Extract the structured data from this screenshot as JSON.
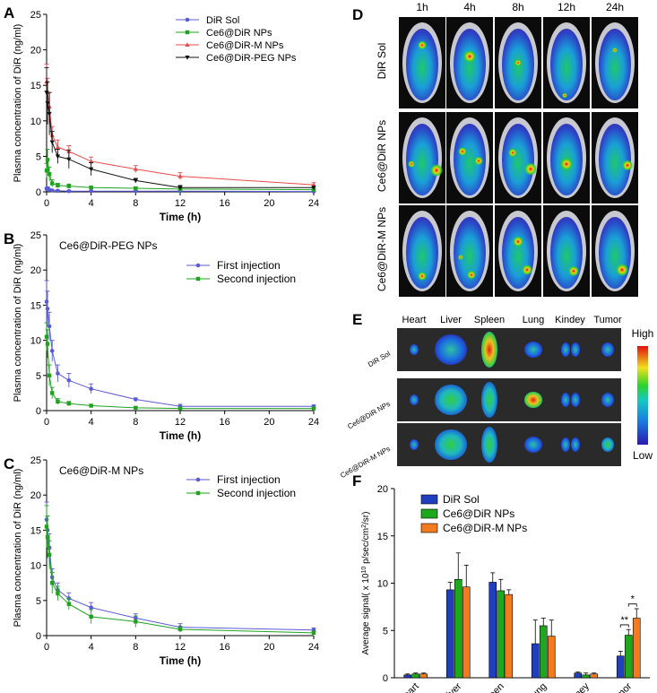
{
  "panels": {
    "A": "A",
    "B": "B",
    "C": "C",
    "D": "D",
    "E": "E",
    "F": "F"
  },
  "colors": {
    "dir": "#5b5bd6",
    "ce6dir": "#1fa31f",
    "m": "#e84b4b",
    "peg": "#111111",
    "first": "#5b5bd6",
    "second": "#1fa31f",
    "bar1": "#1f3fbf",
    "bar2": "#1ea81e",
    "bar3": "#f27b20"
  },
  "axis_common": {
    "ylabel": "Plasma concentration of DiR (ng/ml)",
    "xlabel": "Time (h)"
  },
  "chart_data": [
    {
      "id": "A",
      "type": "line",
      "xlabel": "Time (h)",
      "ylabel": "Plasma concentration of DiR (ng/ml)",
      "xlim": [
        0,
        24
      ],
      "ylim": [
        0,
        25
      ],
      "xticks": [
        0,
        4,
        8,
        12,
        16,
        20,
        24
      ],
      "yticks": [
        0,
        5,
        10,
        15,
        20,
        25
      ],
      "x": [
        0,
        0.083,
        0.25,
        0.5,
        1,
        2,
        4,
        8,
        12,
        24
      ],
      "series": [
        {
          "name": "DiR Sol",
          "values": [
            0.4,
            0.5,
            0.3,
            0.2,
            0.15,
            0.1,
            0.1,
            0.1,
            0.1,
            0.05
          ],
          "err": [
            0.2,
            0.2,
            0.1,
            0.1,
            0.1,
            0.1,
            0.1,
            0.1,
            0.1,
            0.05
          ]
        },
        {
          "name": "Ce6@DiR NPs",
          "values": [
            3.0,
            4.5,
            2.5,
            1.2,
            0.9,
            0.8,
            0.6,
            0.5,
            0.4,
            0.3
          ],
          "err": [
            1.0,
            1.5,
            1.0,
            0.5,
            0.3,
            0.3,
            0.2,
            0.2,
            0.2,
            0.1
          ]
        },
        {
          "name": "Ce6@DiR-M NPs",
          "values": [
            15.5,
            14.0,
            12.0,
            8.0,
            6.3,
            5.7,
            4.3,
            3.2,
            2.2,
            1.0
          ],
          "err": [
            2.5,
            2.0,
            2.0,
            1.2,
            1.0,
            0.8,
            0.6,
            0.5,
            0.5,
            0.3
          ]
        },
        {
          "name": "Ce6@DiR-PEG NPs",
          "values": [
            14.0,
            12.5,
            11.0,
            7.0,
            5.0,
            4.6,
            3.2,
            1.6,
            0.6,
            0.6
          ],
          "err": [
            3.5,
            3.0,
            3.0,
            1.5,
            1.0,
            1.3,
            0.9,
            0.3,
            0.3,
            0.2
          ]
        }
      ]
    },
    {
      "id": "B",
      "type": "line",
      "title": "Ce6@DiR-PEG NPs",
      "xlabel": "Time (h)",
      "ylabel": "Plasma concentration of DiR (ng/ml)",
      "xlim": [
        0,
        24
      ],
      "ylim": [
        0,
        25
      ],
      "xticks": [
        0,
        4,
        8,
        12,
        16,
        20,
        24
      ],
      "yticks": [
        0,
        5,
        10,
        15,
        20,
        25
      ],
      "x": [
        0,
        0.083,
        0.25,
        0.5,
        1,
        2,
        4,
        8,
        12,
        24
      ],
      "series": [
        {
          "name": "First injection",
          "values": [
            15.5,
            14.5,
            12.0,
            8.5,
            5.3,
            4.3,
            3.1,
            1.6,
            0.6,
            0.6
          ],
          "err": [
            3.0,
            2.5,
            2.0,
            1.5,
            1.2,
            1.0,
            0.7,
            0.2,
            0.3,
            0.2
          ]
        },
        {
          "name": "Second injection",
          "values": [
            10.5,
            9.5,
            5.0,
            2.5,
            1.3,
            1.0,
            0.7,
            0.4,
            0.3,
            0.3
          ],
          "err": [
            2.0,
            2.0,
            1.5,
            0.8,
            0.4,
            0.3,
            0.2,
            0.1,
            0.1,
            0.1
          ]
        }
      ]
    },
    {
      "id": "C",
      "type": "line",
      "title": "Ce6@DiR-M NPs",
      "xlabel": "Time (h)",
      "ylabel": "Plasma concentration of DiR (ng/ml)",
      "xlim": [
        0,
        24
      ],
      "ylim": [
        0,
        25
      ],
      "xticks": [
        0,
        4,
        8,
        12,
        16,
        20,
        24
      ],
      "yticks": [
        0,
        5,
        10,
        15,
        20,
        25
      ],
      "x": [
        0,
        0.083,
        0.25,
        0.5,
        1,
        2,
        4,
        8,
        12,
        24
      ],
      "series": [
        {
          "name": "First injection",
          "values": [
            16.5,
            15.0,
            12.5,
            8.3,
            6.5,
            5.3,
            4.0,
            2.5,
            1.2,
            0.8
          ],
          "err": [
            2.5,
            2.0,
            2.0,
            1.2,
            1.0,
            0.8,
            0.7,
            0.6,
            0.5,
            0.3
          ]
        },
        {
          "name": "Second injection",
          "values": [
            15.5,
            14.0,
            11.5,
            7.5,
            6.0,
            4.5,
            2.7,
            2.0,
            0.9,
            0.4
          ],
          "err": [
            3.0,
            3.0,
            2.0,
            1.5,
            1.0,
            0.8,
            1.0,
            0.8,
            0.4,
            0.2
          ]
        }
      ]
    },
    {
      "id": "F",
      "type": "bar",
      "ylabel_pre": "Average signal( x 10",
      "ylabel_exp": "10",
      "ylabel_post": " p/sec/cm",
      "ylabel_exp2": "2",
      "ylabel_end": "/sr)",
      "ylim": [
        0,
        20
      ],
      "yticks": [
        0,
        5,
        10,
        15,
        20
      ],
      "categories": [
        "Heart",
        "Liver",
        "Spleen",
        "Lung",
        "Kidney",
        "Tumor"
      ],
      "series": [
        {
          "name": "DiR Sol",
          "values": [
            0.3,
            9.3,
            10.1,
            3.6,
            0.5,
            2.3
          ],
          "err": [
            0.1,
            0.8,
            1.0,
            2.5,
            0.1,
            0.5
          ]
        },
        {
          "name": "Ce6@DiR NPs",
          "values": [
            0.4,
            10.4,
            9.2,
            5.5,
            0.3,
            4.5
          ],
          "err": [
            0.1,
            2.8,
            1.2,
            0.8,
            0.2,
            0.6
          ]
        },
        {
          "name": "Ce6@DiR-M NPs",
          "values": [
            0.4,
            9.6,
            8.8,
            4.4,
            0.4,
            6.3
          ],
          "err": [
            0.1,
            2.3,
            0.5,
            1.7,
            0.1,
            1.0
          ]
        }
      ],
      "annotations": [
        "**",
        "*"
      ]
    }
  ],
  "imaging": {
    "time_labels": [
      "1h",
      "4h",
      "8h",
      "12h",
      "24h"
    ],
    "row_labels": [
      "DiR Sol",
      "Ce6@DiR NPs",
      "Ce6@DiR-M NPs"
    ]
  },
  "organs": {
    "labels": [
      "Heart",
      "Liver",
      "Spleen",
      "Lung",
      "Kindey",
      "Tumor"
    ],
    "row_labels": [
      "DiR Sol",
      "Ce6@DiR NPs",
      "Ce6@DiR-M NPs"
    ],
    "scale_high": "High",
    "scale_low": "Low"
  }
}
